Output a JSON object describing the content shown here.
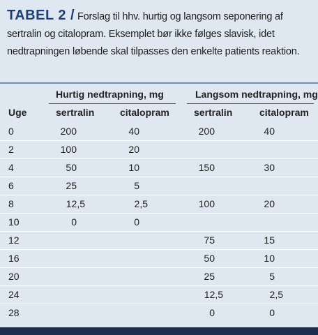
{
  "caption": {
    "label": "TABEL 2 /",
    "text": "Forslag til hhv. hurtig og langsom seponering af sertralin og citalopram. Eksemplet bør ikke følges slavisk, idet nedtrapningen løbende skal tilpasses den enkelte patients reaktion."
  },
  "table": {
    "group_headers": [
      "Hurtig nedtrapning, mg",
      "Langsom nedtrapning, mg"
    ],
    "columns": [
      "Uge",
      "sertralin",
      "citalopram",
      "sertralin",
      "citalopram"
    ],
    "rows": [
      [
        "0",
        "200",
        "40",
        "200",
        "40"
      ],
      [
        "2",
        "100",
        "20",
        null,
        null
      ],
      [
        "4",
        "50",
        "10",
        "150",
        "30"
      ],
      [
        "6",
        "25",
        "5",
        null,
        null
      ],
      [
        "8",
        "12,5",
        "2,5",
        "100",
        "20"
      ],
      [
        "10",
        "0",
        "0",
        null,
        null
      ],
      [
        "12",
        null,
        null,
        "75",
        "15"
      ],
      [
        "16",
        null,
        null,
        "50",
        "10"
      ],
      [
        "20",
        null,
        null,
        "25",
        "5"
      ],
      [
        "24",
        null,
        null,
        "12,5",
        "2,5"
      ],
      [
        "28",
        null,
        null,
        "0",
        "0"
      ]
    ]
  }
}
